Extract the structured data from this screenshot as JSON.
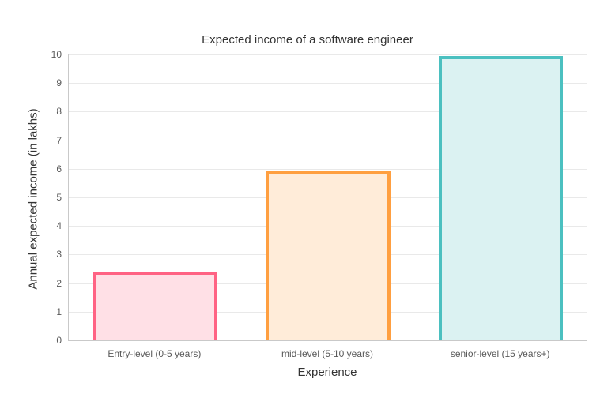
{
  "title": "Expected income of a software engineer",
  "chart_data": {
    "type": "bar",
    "title": "Expected income of a software engineer",
    "xlabel": "Experience",
    "ylabel": "Annual expected income (in lakhs)",
    "categories": [
      "Entry-level (0-5 years)",
      "mid-level (5-10 years)",
      "senior-level (15 years+)"
    ],
    "values": [
      2.4,
      5.95,
      9.95
    ],
    "ylim": [
      0,
      10
    ],
    "y_ticks": [
      0,
      1,
      2,
      3,
      4,
      5,
      6,
      7,
      8,
      9,
      10
    ],
    "grid": true,
    "legend": "none",
    "bar_colors": [
      {
        "border": "#FF6384",
        "fill": "#FFE0E6"
      },
      {
        "border": "#FF9F40",
        "fill": "#FFECD9"
      },
      {
        "border": "#4BC0C0",
        "fill": "#DBF2F2"
      }
    ]
  },
  "colors": {
    "background": "#FFFFFF",
    "gridline": "#E9E9E9",
    "axis_line": "#C9C9C9",
    "tick_text": "#595959",
    "title_text": "#333333"
  }
}
